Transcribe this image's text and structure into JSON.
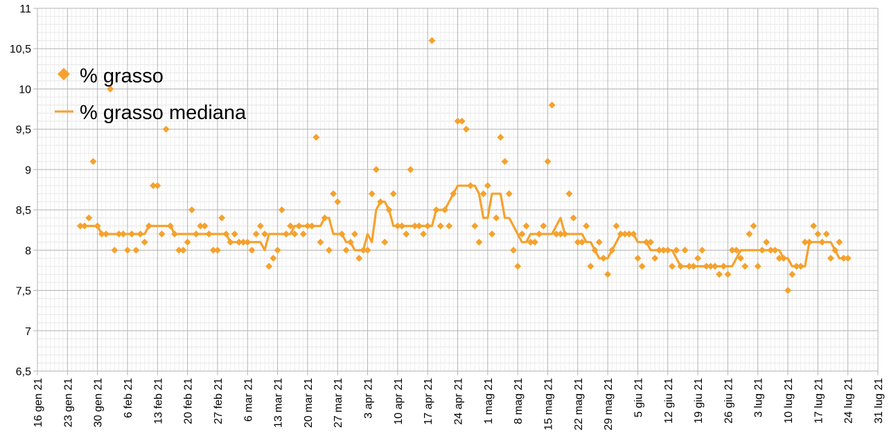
{
  "chart_data": {
    "type": "line",
    "title": "",
    "xlabel": "",
    "ylabel": "",
    "ylim": [
      6.5,
      11
    ],
    "xlim": [
      "2021-01-16",
      "2021-07-31"
    ],
    "yticks": [
      "6,5",
      "7",
      "7,5",
      "8",
      "8,5",
      "9",
      "9,5",
      "10",
      "10,5",
      "11"
    ],
    "xticks": [
      "16 gen 21",
      "23 gen 21",
      "30 gen 21",
      "6 feb 21",
      "13 feb 21",
      "20 feb 21",
      "27 feb 21",
      "6 mar 21",
      "13 mar 21",
      "20 mar 21",
      "27 mar 21",
      "3 apr 21",
      "10 apr 21",
      "17 apr 21",
      "24 apr 21",
      "1 mag 21",
      "8 mag 21",
      "15 mag 21",
      "22 mag 21",
      "29 mag 21",
      "5 giu 21",
      "12 giu 21",
      "19 giu 21",
      "26 giu 21",
      "3 lug 21",
      "10 lug 21",
      "17 lug 21",
      "24 lug 21",
      "31 lug 21"
    ],
    "grid": true,
    "legend_position": "top-left",
    "series": [
      {
        "name": "% grasso",
        "kind": "scatter",
        "color": "#f5a12d",
        "x": [
          "2021-01-26",
          "2021-01-27",
          "2021-01-28",
          "2021-01-29",
          "2021-01-30",
          "2021-01-31",
          "2021-02-01",
          "2021-02-02",
          "2021-02-03",
          "2021-02-04",
          "2021-02-05",
          "2021-02-06",
          "2021-02-07",
          "2021-02-08",
          "2021-02-09",
          "2021-02-10",
          "2021-02-11",
          "2021-02-12",
          "2021-02-13",
          "2021-02-14",
          "2021-02-15",
          "2021-02-16",
          "2021-02-17",
          "2021-02-18",
          "2021-02-19",
          "2021-02-20",
          "2021-02-21",
          "2021-02-22",
          "2021-02-23",
          "2021-02-24",
          "2021-02-25",
          "2021-02-26",
          "2021-02-27",
          "2021-02-28",
          "2021-03-01",
          "2021-03-02",
          "2021-03-03",
          "2021-03-04",
          "2021-03-05",
          "2021-03-06",
          "2021-03-07",
          "2021-03-08",
          "2021-03-09",
          "2021-03-10",
          "2021-03-11",
          "2021-03-12",
          "2021-03-13",
          "2021-03-14",
          "2021-03-15",
          "2021-03-16",
          "2021-03-17",
          "2021-03-18",
          "2021-03-19",
          "2021-03-20",
          "2021-03-21",
          "2021-03-22",
          "2021-03-23",
          "2021-03-24",
          "2021-03-25",
          "2021-03-26",
          "2021-03-27",
          "2021-03-28",
          "2021-03-29",
          "2021-03-30",
          "2021-03-31",
          "2021-04-01",
          "2021-04-02",
          "2021-04-03",
          "2021-04-04",
          "2021-04-05",
          "2021-04-06",
          "2021-04-07",
          "2021-04-08",
          "2021-04-09",
          "2021-04-10",
          "2021-04-11",
          "2021-04-12",
          "2021-04-13",
          "2021-04-14",
          "2021-04-15",
          "2021-04-16",
          "2021-04-17",
          "2021-04-18",
          "2021-04-19",
          "2021-04-20",
          "2021-04-21",
          "2021-04-22",
          "2021-04-23",
          "2021-04-24",
          "2021-04-25",
          "2021-04-26",
          "2021-04-27",
          "2021-04-28",
          "2021-04-29",
          "2021-04-30",
          "2021-05-01",
          "2021-05-02",
          "2021-05-03",
          "2021-05-04",
          "2021-05-05",
          "2021-05-06",
          "2021-05-07",
          "2021-05-08",
          "2021-05-09",
          "2021-05-10",
          "2021-05-11",
          "2021-05-12",
          "2021-05-13",
          "2021-05-14",
          "2021-05-15",
          "2021-05-16",
          "2021-05-17",
          "2021-05-18",
          "2021-05-19",
          "2021-05-20",
          "2021-05-21",
          "2021-05-22",
          "2021-05-23",
          "2021-05-24",
          "2021-05-25",
          "2021-05-26",
          "2021-05-27",
          "2021-05-28",
          "2021-05-29",
          "2021-05-30",
          "2021-05-31",
          "2021-06-01",
          "2021-06-02",
          "2021-06-03",
          "2021-06-04",
          "2021-06-05",
          "2021-06-06",
          "2021-06-07",
          "2021-06-08",
          "2021-06-09",
          "2021-06-10",
          "2021-06-11",
          "2021-06-12",
          "2021-06-13",
          "2021-06-14",
          "2021-06-15",
          "2021-06-16",
          "2021-06-17",
          "2021-06-18",
          "2021-06-19",
          "2021-06-20",
          "2021-06-21",
          "2021-06-22",
          "2021-06-23",
          "2021-06-24",
          "2021-06-25",
          "2021-06-26",
          "2021-06-27",
          "2021-06-28",
          "2021-06-29",
          "2021-06-30",
          "2021-07-01",
          "2021-07-02",
          "2021-07-03",
          "2021-07-04",
          "2021-07-05",
          "2021-07-06",
          "2021-07-07",
          "2021-07-08",
          "2021-07-09",
          "2021-07-10",
          "2021-07-11",
          "2021-07-12",
          "2021-07-13",
          "2021-07-14",
          "2021-07-15",
          "2021-07-16",
          "2021-07-17",
          "2021-07-18",
          "2021-07-19",
          "2021-07-20",
          "2021-07-21",
          "2021-07-22",
          "2021-07-23",
          "2021-07-24"
        ],
        "y": [
          8.3,
          8.3,
          8.4,
          9.1,
          8.3,
          8.2,
          8.2,
          10.0,
          8.0,
          8.2,
          8.2,
          8.0,
          8.2,
          8.0,
          8.2,
          8.1,
          8.3,
          8.8,
          8.8,
          8.2,
          9.5,
          8.3,
          8.2,
          8.0,
          8.0,
          8.1,
          8.5,
          8.2,
          8.3,
          8.3,
          8.2,
          8.0,
          8.0,
          8.4,
          8.2,
          8.1,
          8.2,
          8.1,
          8.1,
          8.1,
          8.0,
          8.2,
          8.3,
          8.2,
          7.8,
          7.9,
          8.0,
          8.5,
          8.2,
          8.3,
          8.2,
          8.3,
          8.2,
          8.3,
          8.3,
          9.4,
          8.1,
          8.4,
          8.0,
          8.7,
          8.6,
          8.2,
          8.0,
          8.1,
          8.2,
          7.9,
          8.0,
          8.0,
          8.7,
          9.0,
          8.6,
          8.1,
          8.5,
          8.7,
          8.3,
          8.3,
          8.2,
          9.0,
          8.3,
          8.3,
          8.2,
          8.3,
          10.6,
          8.5,
          8.3,
          8.5,
          8.3,
          8.7,
          9.6,
          9.6,
          9.5,
          8.8,
          8.3,
          8.1,
          8.7,
          8.8,
          8.2,
          8.4,
          9.4,
          9.1,
          8.7,
          8.0,
          7.8,
          8.2,
          8.3,
          8.1,
          8.1,
          8.2,
          8.3,
          9.1,
          9.8,
          8.2,
          8.2,
          8.2,
          8.7,
          8.4,
          8.1,
          8.1,
          8.3,
          7.8,
          8.0,
          8.1,
          7.9,
          7.7,
          8.0,
          8.3,
          8.2,
          8.2,
          8.2,
          8.2,
          7.9,
          7.8,
          8.1,
          8.1,
          7.9,
          8.0,
          8.0,
          8.0,
          7.8,
          8.0,
          7.8,
          8.0,
          7.8,
          7.8,
          7.9,
          8.0,
          7.8,
          7.8,
          7.8,
          7.7,
          7.8,
          7.7,
          8.0,
          8.0,
          7.9,
          7.8,
          8.2,
          8.3,
          7.8,
          8.0,
          8.1,
          8.0,
          8.0,
          7.9,
          7.9,
          7.5,
          7.7,
          7.8,
          7.8,
          8.1,
          8.1,
          8.3,
          8.2,
          8.1,
          8.2,
          7.9,
          8.0,
          8.1,
          7.9,
          7.9
        ]
      },
      {
        "name": "% grasso mediana",
        "kind": "line",
        "color": "#f5a12d",
        "x": [
          "2021-01-26",
          "2021-01-27",
          "2021-01-28",
          "2021-01-29",
          "2021-01-30",
          "2021-01-31",
          "2021-02-01",
          "2021-02-02",
          "2021-02-03",
          "2021-02-04",
          "2021-02-05",
          "2021-02-06",
          "2021-02-07",
          "2021-02-08",
          "2021-02-09",
          "2021-02-10",
          "2021-02-11",
          "2021-02-12",
          "2021-02-13",
          "2021-02-14",
          "2021-02-15",
          "2021-02-16",
          "2021-02-17",
          "2021-02-18",
          "2021-02-19",
          "2021-02-20",
          "2021-02-21",
          "2021-02-22",
          "2021-02-23",
          "2021-02-24",
          "2021-02-25",
          "2021-02-26",
          "2021-02-27",
          "2021-02-28",
          "2021-03-01",
          "2021-03-02",
          "2021-03-03",
          "2021-03-04",
          "2021-03-05",
          "2021-03-06",
          "2021-03-07",
          "2021-03-08",
          "2021-03-09",
          "2021-03-10",
          "2021-03-11",
          "2021-03-12",
          "2021-03-13",
          "2021-03-14",
          "2021-03-15",
          "2021-03-16",
          "2021-03-17",
          "2021-03-18",
          "2021-03-19",
          "2021-03-20",
          "2021-03-21",
          "2021-03-22",
          "2021-03-23",
          "2021-03-24",
          "2021-03-25",
          "2021-03-26",
          "2021-03-27",
          "2021-03-28",
          "2021-03-29",
          "2021-03-30",
          "2021-03-31",
          "2021-04-01",
          "2021-04-02",
          "2021-04-03",
          "2021-04-04",
          "2021-04-05",
          "2021-04-06",
          "2021-04-07",
          "2021-04-08",
          "2021-04-09",
          "2021-04-10",
          "2021-04-11",
          "2021-04-12",
          "2021-04-13",
          "2021-04-14",
          "2021-04-15",
          "2021-04-16",
          "2021-04-17",
          "2021-04-18",
          "2021-04-19",
          "2021-04-20",
          "2021-04-21",
          "2021-04-22",
          "2021-04-23",
          "2021-04-24",
          "2021-04-25",
          "2021-04-26",
          "2021-04-27",
          "2021-04-28",
          "2021-04-29",
          "2021-04-30",
          "2021-05-01",
          "2021-05-02",
          "2021-05-03",
          "2021-05-04",
          "2021-05-05",
          "2021-05-06",
          "2021-05-07",
          "2021-05-08",
          "2021-05-09",
          "2021-05-10",
          "2021-05-11",
          "2021-05-12",
          "2021-05-13",
          "2021-05-14",
          "2021-05-15",
          "2021-05-16",
          "2021-05-17",
          "2021-05-18",
          "2021-05-19",
          "2021-05-20",
          "2021-05-21",
          "2021-05-22",
          "2021-05-23",
          "2021-05-24",
          "2021-05-25",
          "2021-05-26",
          "2021-05-27",
          "2021-05-28",
          "2021-05-29",
          "2021-05-30",
          "2021-05-31",
          "2021-06-01",
          "2021-06-02",
          "2021-06-03",
          "2021-06-04",
          "2021-06-05",
          "2021-06-06",
          "2021-06-07",
          "2021-06-08",
          "2021-06-09",
          "2021-06-10",
          "2021-06-11",
          "2021-06-12",
          "2021-06-13",
          "2021-06-14",
          "2021-06-15",
          "2021-06-16",
          "2021-06-17",
          "2021-06-18",
          "2021-06-19",
          "2021-06-20",
          "2021-06-21",
          "2021-06-22",
          "2021-06-23",
          "2021-06-24",
          "2021-06-25",
          "2021-06-26",
          "2021-06-27",
          "2021-06-28",
          "2021-06-29",
          "2021-06-30",
          "2021-07-01",
          "2021-07-02",
          "2021-07-03",
          "2021-07-04",
          "2021-07-05",
          "2021-07-06",
          "2021-07-07",
          "2021-07-08",
          "2021-07-09",
          "2021-07-10",
          "2021-07-11",
          "2021-07-12",
          "2021-07-13",
          "2021-07-14",
          "2021-07-15",
          "2021-07-16",
          "2021-07-17",
          "2021-07-18",
          "2021-07-19",
          "2021-07-20",
          "2021-07-21",
          "2021-07-22",
          "2021-07-23",
          "2021-07-24"
        ],
        "y": [
          8.3,
          8.3,
          8.3,
          8.3,
          8.3,
          8.2,
          8.2,
          8.2,
          8.2,
          8.2,
          8.2,
          8.2,
          8.2,
          8.2,
          8.2,
          8.2,
          8.3,
          8.3,
          8.3,
          8.3,
          8.3,
          8.3,
          8.2,
          8.2,
          8.2,
          8.2,
          8.2,
          8.2,
          8.2,
          8.2,
          8.2,
          8.2,
          8.2,
          8.2,
          8.2,
          8.1,
          8.1,
          8.1,
          8.1,
          8.1,
          8.1,
          8.1,
          8.1,
          8.0,
          8.2,
          8.2,
          8.2,
          8.2,
          8.2,
          8.2,
          8.3,
          8.3,
          8.3,
          8.3,
          8.3,
          8.3,
          8.3,
          8.4,
          8.4,
          8.2,
          8.2,
          8.2,
          8.1,
          8.1,
          8.0,
          8.0,
          8.0,
          8.2,
          8.1,
          8.5,
          8.6,
          8.6,
          8.5,
          8.3,
          8.3,
          8.3,
          8.3,
          8.3,
          8.3,
          8.3,
          8.3,
          8.3,
          8.3,
          8.5,
          8.5,
          8.5,
          8.6,
          8.7,
          8.8,
          8.8,
          8.8,
          8.8,
          8.8,
          8.7,
          8.4,
          8.4,
          8.7,
          8.7,
          8.7,
          8.4,
          8.4,
          8.3,
          8.2,
          8.1,
          8.1,
          8.2,
          8.2,
          8.2,
          8.2,
          8.2,
          8.2,
          8.3,
          8.4,
          8.2,
          8.2,
          8.2,
          8.2,
          8.2,
          8.1,
          8.1,
          8.0,
          7.9,
          7.9,
          7.9,
          8.0,
          8.1,
          8.2,
          8.2,
          8.2,
          8.2,
          8.1,
          8.1,
          8.1,
          8.0,
          8.0,
          8.0,
          8.0,
          8.0,
          8.0,
          7.9,
          7.8,
          7.8,
          7.8,
          7.8,
          7.8,
          7.8,
          7.8,
          7.8,
          7.8,
          7.8,
          7.8,
          7.8,
          7.8,
          7.9,
          8.0,
          8.0,
          8.0,
          8.0,
          8.0,
          8.0,
          8.0,
          8.0,
          8.0,
          8.0,
          7.9,
          7.9,
          7.8,
          7.8,
          7.8,
          7.8,
          8.1,
          8.1,
          8.1,
          8.1,
          8.1,
          8.1,
          8.0,
          7.9,
          7.9,
          7.9
        ]
      }
    ]
  }
}
